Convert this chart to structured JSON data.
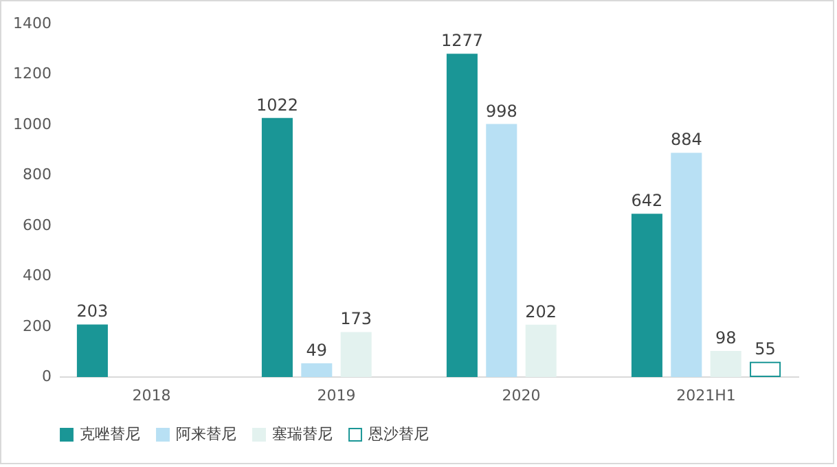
{
  "chart_data": {
    "type": "bar",
    "categories": [
      "2018",
      "2019",
      "2020",
      "2021H1"
    ],
    "series": [
      {
        "name": "克唑替尼",
        "color": "#1a9696",
        "values": [
          203,
          1022,
          1277,
          642
        ]
      },
      {
        "name": "阿来替尼",
        "color": "#b8e0f4",
        "values": [
          null,
          49,
          998,
          884
        ]
      },
      {
        "name": "塞瑞替尼",
        "color": "#e3f2ef",
        "values": [
          null,
          173,
          202,
          98
        ]
      },
      {
        "name": "恩沙替尼",
        "color": "#ffffff",
        "values": [
          null,
          null,
          null,
          55
        ]
      }
    ],
    "ylim": [
      0,
      1400
    ],
    "yticks": [
      0,
      200,
      400,
      600,
      800,
      1000,
      1200,
      1400
    ],
    "grid": false,
    "legend": "bottom",
    "data_labels": true
  }
}
